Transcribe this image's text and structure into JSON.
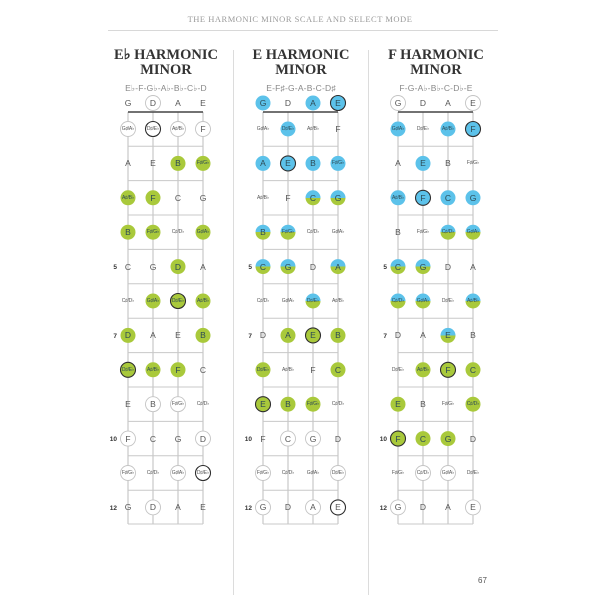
{
  "running_head": "THE HARMONIC MINOR SCALE AND SELECT MODE",
  "page_number": "67",
  "colors": {
    "blue": "#5cc2ea",
    "green": "#a9c93b",
    "root_outline": "#2f2f2f",
    "outline": "#c4c4c4",
    "text": "#555555"
  },
  "legend_codes": {
    "n": "plain",
    "o": "outline",
    "O": "root outline",
    "b": "blue",
    "B": "blue root",
    "g": "green",
    "G": "green root",
    "s": "blue/green split",
    "S": "split root"
  },
  "fretboard": {
    "strings": [
      "G",
      "D",
      "A",
      "E"
    ],
    "fret_markers": {
      "5": "5",
      "7": "7",
      "10": "10",
      "12": "12"
    },
    "notes": [
      [
        "G",
        "D",
        "A",
        "E"
      ],
      [
        "G♯/A♭",
        "D♯/E♭",
        "A♯/B♭",
        "F"
      ],
      [
        "A",
        "E",
        "B",
        "F♯/G♭"
      ],
      [
        "A♯/B♭",
        "F",
        "C",
        "G"
      ],
      [
        "B",
        "F♯/G♭",
        "C♯/D♭",
        "G♯/A♭"
      ],
      [
        "C",
        "G",
        "D",
        "A"
      ],
      [
        "C♯/D♭",
        "G♯/A♭",
        "D♯/E♭",
        "A♯/B♭"
      ],
      [
        "D",
        "A",
        "E",
        "B"
      ],
      [
        "D♯/E♭",
        "A♯/B♭",
        "F",
        "C"
      ],
      [
        "E",
        "B",
        "F♯/G♭",
        "C♯/D♭"
      ],
      [
        "F",
        "C",
        "G",
        "D"
      ],
      [
        "F♯/G♭",
        "C♯/D♭",
        "G♯/A♭",
        "D♯/E♭"
      ],
      [
        "G",
        "D",
        "A",
        "E"
      ]
    ]
  },
  "diagrams": [
    {
      "title_line1": "E♭ HARMONIC",
      "title_line2": "MINOR",
      "scale": "E♭-F-G♭-A♭-B♭-C♭-D",
      "marks": [
        [
          "n",
          "o",
          "n",
          "n"
        ],
        [
          "o",
          "O",
          "o",
          "o"
        ],
        [
          "n",
          "n",
          "g",
          "g"
        ],
        [
          "g",
          "g",
          "n",
          "n"
        ],
        [
          "g",
          "g",
          "n",
          "g"
        ],
        [
          "n",
          "n",
          "g",
          "n"
        ],
        [
          "n",
          "g",
          "G",
          "g"
        ],
        [
          "g",
          "n",
          "n",
          "g"
        ],
        [
          "G",
          "g",
          "g",
          "n"
        ],
        [
          "n",
          "o",
          "o",
          "n"
        ],
        [
          "o",
          "n",
          "n",
          "o"
        ],
        [
          "o",
          "n",
          "o",
          "O"
        ],
        [
          "n",
          "o",
          "n",
          "n"
        ]
      ]
    },
    {
      "title_line1": "E HARMONIC",
      "title_line2": "MINOR",
      "scale": "E-F♯-G-A-B-C-D♯",
      "marks": [
        [
          "b",
          "n",
          "b",
          "B"
        ],
        [
          "n",
          "b",
          "n",
          "n"
        ],
        [
          "b",
          "B",
          "b",
          "b"
        ],
        [
          "n",
          "n",
          "s",
          "s"
        ],
        [
          "s",
          "s",
          "n",
          "n"
        ],
        [
          "s",
          "s",
          "n",
          "s"
        ],
        [
          "n",
          "n",
          "s",
          "n"
        ],
        [
          "n",
          "g",
          "G",
          "g"
        ],
        [
          "g",
          "n",
          "n",
          "g"
        ],
        [
          "G",
          "g",
          "g",
          "n"
        ],
        [
          "n",
          "o",
          "o",
          "n"
        ],
        [
          "o",
          "n",
          "n",
          "o"
        ],
        [
          "o",
          "n",
          "o",
          "O"
        ]
      ]
    },
    {
      "title_line1": "F HARMONIC",
      "title_line2": "MINOR",
      "scale": "F-G-A♭-B♭-C-D♭-E",
      "marks": [
        [
          "o",
          "n",
          "n",
          "o"
        ],
        [
          "b",
          "n",
          "b",
          "B"
        ],
        [
          "n",
          "b",
          "n",
          "n"
        ],
        [
          "b",
          "B",
          "b",
          "b"
        ],
        [
          "n",
          "n",
          "s",
          "s"
        ],
        [
          "s",
          "s",
          "n",
          "n"
        ],
        [
          "s",
          "s",
          "n",
          "s"
        ],
        [
          "n",
          "n",
          "s",
          "n"
        ],
        [
          "n",
          "g",
          "G",
          "g"
        ],
        [
          "g",
          "n",
          "n",
          "g"
        ],
        [
          "G",
          "g",
          "g",
          "n"
        ],
        [
          "n",
          "o",
          "o",
          "n"
        ],
        [
          "o",
          "n",
          "n",
          "o"
        ]
      ]
    }
  ]
}
